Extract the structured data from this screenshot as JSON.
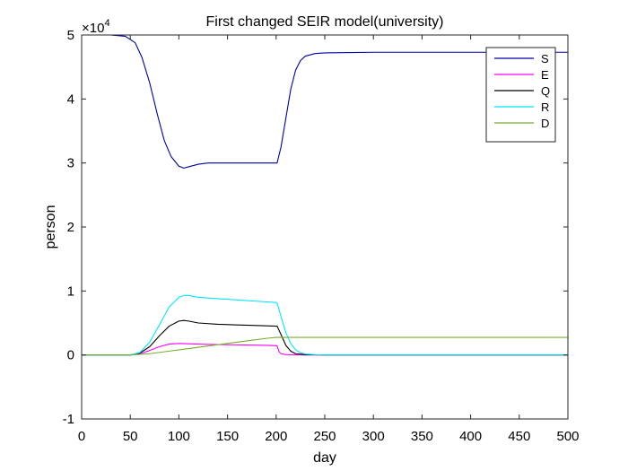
{
  "chart_data": {
    "type": "line",
    "title": "First changed SEIR model(university)",
    "xlabel": "day",
    "ylabel": "person",
    "exponent_label": "×10",
    "exponent_power": "4",
    "xlim": [
      0,
      500
    ],
    "ylim": [
      -10000,
      50000
    ],
    "xticks": [
      0,
      50,
      100,
      150,
      200,
      250,
      300,
      350,
      400,
      450,
      500
    ],
    "xtick_labels": [
      "0",
      "50",
      "100",
      "150",
      "200",
      "250",
      "300",
      "350",
      "400",
      "450",
      "500"
    ],
    "yticks": [
      -10000,
      0,
      10000,
      20000,
      30000,
      40000,
      50000
    ],
    "ytick_labels": [
      "-1",
      "0",
      "1",
      "2",
      "3",
      "4",
      "5"
    ],
    "grid": false,
    "legend_position": "top-right",
    "series": [
      {
        "name": "S",
        "color": "#0000aa",
        "x": [
          0,
          30,
          45,
          55,
          62,
          70,
          78,
          85,
          92,
          100,
          105,
          110,
          120,
          130,
          150,
          200,
          201,
          205,
          210,
          215,
          220,
          225,
          230,
          240,
          250,
          300,
          400,
          500
        ],
        "y": [
          50000,
          50000,
          49800,
          48800,
          46500,
          42500,
          37500,
          33500,
          31000,
          29500,
          29200,
          29400,
          29800,
          30000,
          30000,
          30000,
          30000,
          32500,
          37000,
          41500,
          44500,
          46000,
          46700,
          47100,
          47200,
          47300,
          47300,
          47300
        ]
      },
      {
        "name": "E",
        "color": "#ff00ff",
        "x": [
          0,
          50,
          60,
          70,
          80,
          90,
          100,
          110,
          130,
          150,
          170,
          190,
          200,
          201,
          203,
          205,
          210,
          220,
          230,
          250,
          300,
          400,
          500
        ],
        "y": [
          0,
          0,
          200,
          700,
          1300,
          1700,
          1800,
          1750,
          1650,
          1600,
          1550,
          1500,
          1450,
          1400,
          500,
          200,
          50,
          10,
          0,
          0,
          0,
          0,
          0
        ]
      },
      {
        "name": "Q",
        "color": "#000000",
        "x": [
          0,
          50,
          60,
          70,
          80,
          90,
          100,
          105,
          110,
          120,
          140,
          160,
          180,
          200,
          201,
          205,
          210,
          215,
          220,
          230,
          250,
          300,
          400,
          500
        ],
        "y": [
          0,
          0,
          300,
          1300,
          3000,
          4500,
          5300,
          5400,
          5300,
          5000,
          4800,
          4700,
          4600,
          4500,
          4500,
          3200,
          1500,
          600,
          200,
          50,
          0,
          0,
          0,
          0
        ]
      },
      {
        "name": "R",
        "color": "#00e5ff",
        "x": [
          0,
          50,
          60,
          70,
          80,
          90,
          100,
          105,
          110,
          120,
          140,
          160,
          180,
          200,
          201,
          205,
          210,
          215,
          220,
          225,
          230,
          240,
          250,
          300,
          400,
          500
        ],
        "y": [
          0,
          0,
          400,
          2000,
          4700,
          7500,
          9000,
          9300,
          9300,
          9000,
          8800,
          8600,
          8400,
          8200,
          8100,
          6000,
          3500,
          1800,
          800,
          350,
          150,
          40,
          0,
          0,
          0,
          0
        ]
      },
      {
        "name": "D",
        "color": "#77ac30",
        "x": [
          0,
          50,
          70,
          90,
          110,
          130,
          150,
          170,
          190,
          200,
          205,
          210,
          300,
          400,
          500
        ],
        "y": [
          0,
          0,
          200,
          600,
          1000,
          1400,
          1800,
          2200,
          2600,
          2750,
          2750,
          2750,
          2750,
          2750,
          2750
        ]
      }
    ]
  }
}
